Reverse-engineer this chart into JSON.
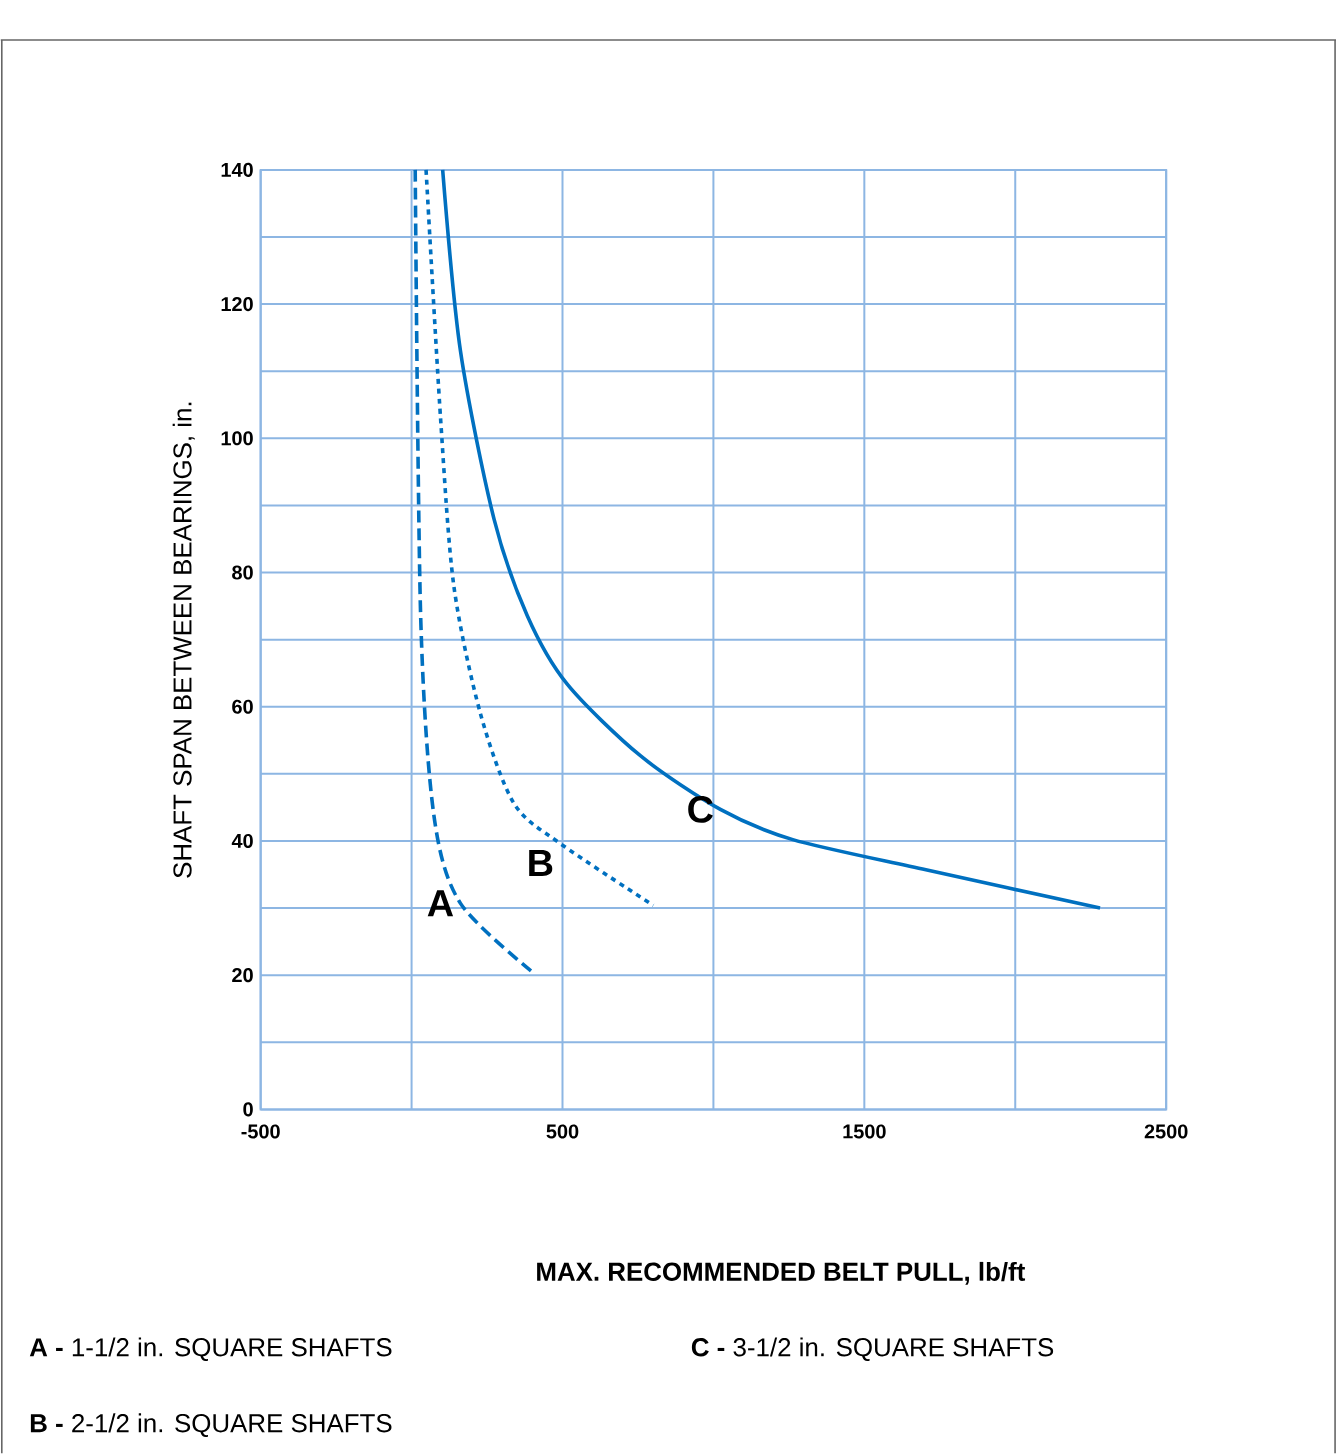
{
  "chart_data": {
    "type": "line",
    "xlabel": "MAX. RECOMMENDED BELT PULL, lb/ft",
    "ylabel": "SHAFT SPAN BETWEEN BEARINGS, in.",
    "xlim": [
      -500,
      2500
    ],
    "ylim": [
      0,
      140
    ],
    "xticks": [
      -500,
      {
        "value": 0,
        "label": null
      },
      500,
      {
        "value": 1000,
        "label": null
      },
      1500,
      {
        "value": 2000,
        "label": null
      },
      2500
    ],
    "yticks": [
      0,
      {
        "value": 10,
        "label": null
      },
      20,
      {
        "value": 30,
        "label": null
      },
      40,
      {
        "value": 50,
        "label": null
      },
      60,
      {
        "value": 70,
        "label": null
      },
      80,
      {
        "value": 90,
        "label": null
      },
      100,
      {
        "value": 110,
        "label": null
      },
      120,
      {
        "value": 130,
        "label": null
      },
      140
    ],
    "grid": true,
    "marker": "none",
    "series": [
      {
        "name": "A",
        "color": "#0070c0",
        "line_style": "dashed",
        "x": [
          12,
          30,
          74,
          162,
          405
        ],
        "values": [
          140,
          73.6,
          43.8,
          30.7,
          20.3
        ]
      },
      {
        "name": "B",
        "color": "#0070c0",
        "line_style": "dotted",
        "x": [
          48,
          96,
          140,
          228,
          339,
          493,
          801
        ],
        "values": [
          140,
          103,
          78,
          59,
          45.6,
          39.6,
          30.4
        ]
      },
      {
        "name": "C",
        "color": "#0070c0",
        "line_style": "solid",
        "x": [
          103,
          162,
          273,
          383,
          515,
          758,
          1023,
          1263,
          1704,
          2281
        ],
        "values": [
          140,
          113,
          88,
          73.6,
          63.4,
          52.7,
          44.7,
          40.2,
          35.7,
          30
        ]
      }
    ],
    "annotations": [
      "**A -** 1-1/2 in. SQUARE SHAFTS",
      "**C -** 3-1/2 in. SQUARE SHAFTS",
      "**B -** 2-1/2 in. SQUARE SHAFTS"
    ]
  }
}
